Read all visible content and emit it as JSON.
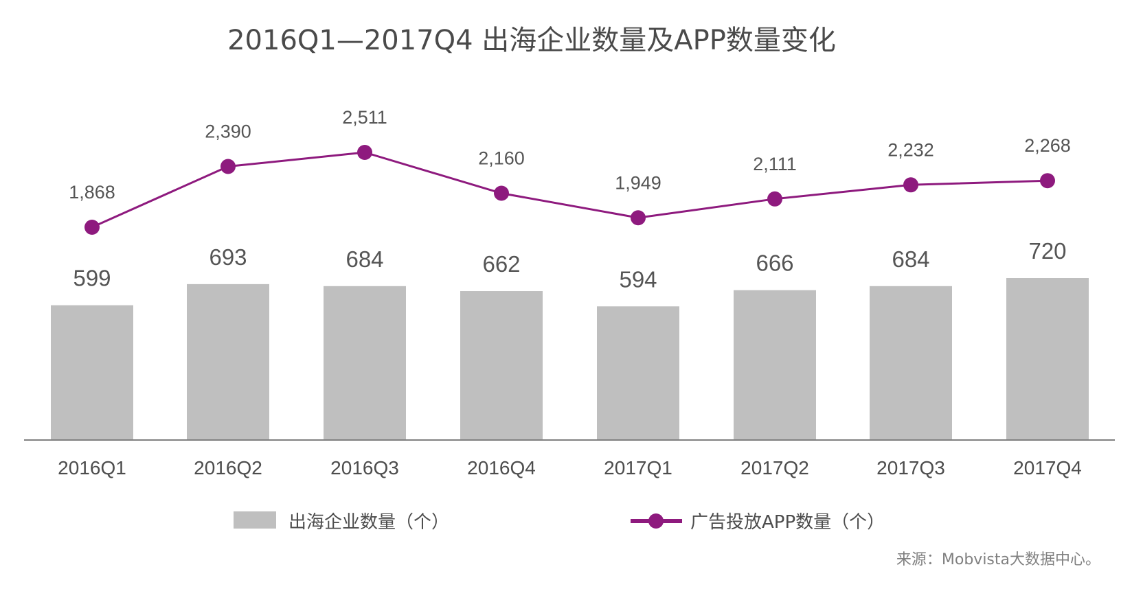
{
  "title": "2016Q1—2017Q4 出海企业数量及APP数量变化",
  "source": "来源：Mobvista大数据中心。",
  "colors": {
    "bar": "#bfbfbf",
    "line": "#8e1a7e",
    "axis": "#808080",
    "text": "#4d4d4d"
  },
  "chart_data": {
    "type": "bar",
    "categories": [
      "2016Q1",
      "2016Q2",
      "2016Q3",
      "2016Q4",
      "2017Q1",
      "2017Q2",
      "2017Q3",
      "2017Q4"
    ],
    "series": [
      {
        "name": "出海企业数量（个）",
        "type": "bar",
        "values": [
          599,
          693,
          684,
          662,
          594,
          666,
          684,
          720
        ],
        "labels": [
          "599",
          "693",
          "684",
          "662",
          "594",
          "666",
          "684",
          "720"
        ]
      },
      {
        "name": "广告投放APP数量（个）",
        "type": "line",
        "values": [
          1868,
          2390,
          2511,
          2160,
          1949,
          2111,
          2232,
          2268
        ],
        "labels": [
          "1,868",
          "2,390",
          "2,511",
          "2,160",
          "1,949",
          "2,111",
          "2,232",
          "2,268"
        ]
      }
    ],
    "legend_position": "bottom",
    "grid": false
  }
}
